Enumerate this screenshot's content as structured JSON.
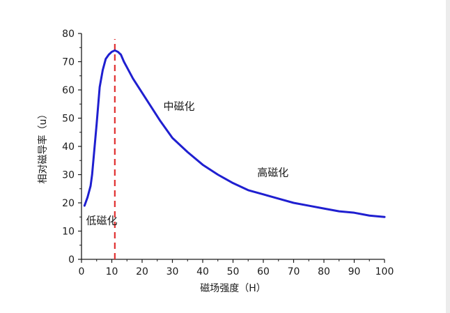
{
  "chart_data": {
    "type": "line",
    "title": "",
    "xlabel": "磁场强度（H）",
    "ylabel": "相对磁导率（u）",
    "xlim": [
      0,
      100
    ],
    "ylim": [
      0,
      80
    ],
    "x_ticks": [
      0,
      10,
      20,
      30,
      40,
      50,
      60,
      70,
      80,
      90,
      100
    ],
    "y_ticks": [
      0,
      10,
      20,
      30,
      40,
      50,
      60,
      70,
      80
    ],
    "grid": false,
    "series": [
      {
        "color": "#1f1fd0",
        "x": [
          1,
          2,
          3,
          3.5,
          4,
          5,
          6,
          7,
          8,
          9,
          10,
          11,
          12,
          13,
          14,
          15,
          17,
          20,
          23,
          26,
          30,
          35,
          40,
          45,
          50,
          55,
          60,
          65,
          70,
          75,
          80,
          85,
          90,
          95,
          100
        ],
        "y": [
          19,
          22,
          26,
          30,
          36,
          48,
          61,
          67,
          71,
          72.5,
          73.5,
          74,
          73.5,
          72.5,
          70,
          68,
          64,
          59,
          54,
          49,
          43,
          38,
          33.5,
          30,
          27,
          24.5,
          23,
          21.5,
          20,
          19,
          18,
          17,
          16.5,
          15.5,
          15
        ]
      }
    ],
    "reference_lines": [
      {
        "orientation": "vertical",
        "x": 11,
        "color": "#e03030",
        "style": "dashed"
      }
    ],
    "annotations": [
      {
        "text": "低磁化",
        "x": 1.5,
        "y": 12.5
      },
      {
        "text": "中磁化",
        "x": 27,
        "y": 53
      },
      {
        "text": "高磁化",
        "x": 58,
        "y": 29.5
      }
    ],
    "colors": {
      "axis": "#1a1a1a",
      "series": "#1f1fd0",
      "reference": "#e03030"
    }
  }
}
